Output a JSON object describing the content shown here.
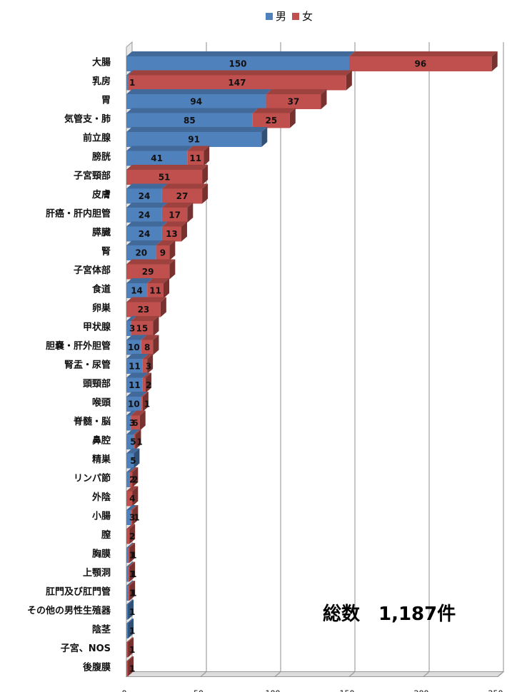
{
  "chart_data": {
    "type": "bar",
    "orientation": "horizontal",
    "stacked": true,
    "style": "3d",
    "categories": [
      "大腸",
      "乳房",
      "胃",
      "気管支・肺",
      "前立腺",
      "膀胱",
      "子宮頸部",
      "皮膚",
      "肝癌・肝内胆管",
      "膵臓",
      "腎",
      "子宮体部",
      "食道",
      "卵巣",
      "甲状腺",
      "胆嚢・肝外胆管",
      "腎盂・尿管",
      "頭頸部",
      "喉頭",
      "脊髄・脳",
      "鼻腔",
      "精巣",
      "リンパ節",
      "外陰",
      "小腸",
      "膣",
      "胸膜",
      "上顎洞",
      "肛門及び肛門管",
      "その他の男性生殖器",
      "陰茎",
      "子宮、NOS",
      "後腹膜"
    ],
    "series": [
      {
        "name": "男",
        "color": "#4f81bd",
        "values": [
          150,
          1,
          94,
          85,
          91,
          41,
          null,
          24,
          24,
          24,
          20,
          null,
          14,
          null,
          3,
          10,
          11,
          11,
          10,
          3,
          5,
          5,
          2,
          null,
          3,
          null,
          1,
          1,
          1,
          1,
          1,
          null,
          null
        ]
      },
      {
        "name": "女",
        "color": "#c0504d",
        "values": [
          96,
          147,
          37,
          25,
          null,
          11,
          51,
          27,
          17,
          13,
          9,
          29,
          11,
          23,
          15,
          8,
          3,
          2,
          1,
          6,
          1,
          null,
          2,
          4,
          1,
          2,
          1,
          1,
          1,
          null,
          null,
          1,
          1
        ]
      }
    ],
    "xlim": [
      0,
      250
    ],
    "xticks": [
      "0",
      "50",
      "100",
      "150",
      "200",
      "250"
    ],
    "legend_position": "top",
    "grid": true,
    "annotation": "総数　1,187件"
  }
}
